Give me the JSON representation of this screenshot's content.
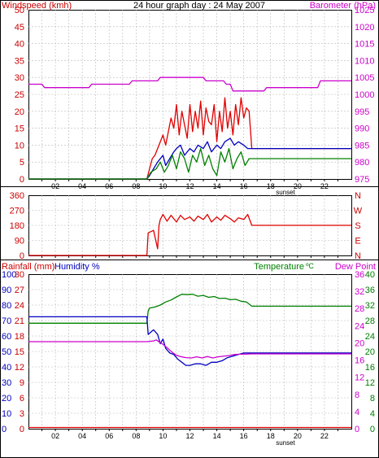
{
  "chart_data": [
    {
      "type": "line",
      "title": "24 hour graph day : 24 May 2007",
      "ylabel_left": "Windspeed (kmh)",
      "ylabel_right": "Barometer (hPa)",
      "x_ticks": [
        "02",
        "04",
        "06",
        "08",
        "10",
        "12",
        "14",
        "16",
        "18",
        "20",
        "22"
      ],
      "x_annotation": "sunset",
      "xlim": [
        0,
        24
      ],
      "y_left_ticks": [
        "0",
        "5",
        "10",
        "15",
        "20",
        "25",
        "30",
        "35",
        "40",
        "45",
        "50"
      ],
      "ylim_left": [
        0,
        50
      ],
      "y_right_ticks": [
        "975",
        "980",
        "985",
        "990",
        "995",
        "1000",
        "1005",
        "1010",
        "1015",
        "1020",
        "1025"
      ],
      "ylim_right": [
        975,
        1025
      ],
      "grid": true,
      "colors": {
        "gust": "#e00000",
        "wind": "#0000c0",
        "wind_min": "#008000",
        "barometer": "#cc00cc",
        "left_axis": "#cc0000",
        "right_axis": "#cc00cc"
      },
      "series": [
        {
          "axis": "left",
          "color": "#e00000",
          "x": [
            0,
            8.8,
            9.0,
            9.2,
            9.4,
            9.6,
            9.8,
            10.0,
            10.2,
            10.4,
            10.6,
            10.8,
            11.0,
            11.2,
            11.4,
            11.6,
            11.8,
            12.0,
            12.2,
            12.4,
            12.6,
            12.8,
            13.0,
            13.2,
            13.4,
            13.6,
            13.8,
            14.0,
            14.2,
            14.4,
            14.6,
            14.8,
            15.0,
            15.2,
            15.4,
            15.6,
            15.8,
            16.0,
            16.2,
            16.4,
            16.6,
            24
          ],
          "y": [
            0,
            0,
            3,
            6,
            7,
            9,
            11,
            13,
            10,
            14,
            18,
            15,
            22,
            13,
            20,
            16,
            12,
            22,
            14,
            20,
            15,
            23,
            13,
            21,
            17,
            16,
            22,
            11,
            20,
            14,
            24,
            15,
            20,
            13,
            22,
            16,
            24,
            18,
            21,
            20,
            9,
            9
          ]
        },
        {
          "axis": "left",
          "color": "#0000c0",
          "x": [
            0,
            8.8,
            9.0,
            9.3,
            9.6,
            10.0,
            10.2,
            10.5,
            10.8,
            11.0,
            11.3,
            11.6,
            12.0,
            12.3,
            12.6,
            13.0,
            13.3,
            13.6,
            14.0,
            14.3,
            14.6,
            15.0,
            15.3,
            15.6,
            16.0,
            16.3,
            16.6,
            24
          ],
          "y": [
            0,
            0,
            1,
            3,
            5,
            7,
            4,
            6,
            8,
            9,
            10,
            7,
            9,
            8,
            10,
            9,
            11,
            8,
            10,
            9,
            11,
            12,
            10,
            11,
            10,
            9,
            9,
            9
          ]
        },
        {
          "axis": "left",
          "color": "#008000",
          "x": [
            0,
            8.8,
            9.1,
            9.5,
            9.8,
            10.1,
            10.4,
            10.7,
            11.0,
            11.3,
            11.6,
            11.9,
            12.2,
            12.5,
            12.8,
            13.1,
            13.4,
            13.7,
            14.0,
            14.3,
            14.6,
            14.9,
            15.2,
            15.5,
            15.8,
            16.1,
            16.4,
            16.6,
            24
          ],
          "y": [
            0,
            0,
            2,
            3,
            5,
            2,
            4,
            7,
            3,
            8,
            6,
            2,
            7,
            5,
            9,
            4,
            7,
            3,
            1,
            8,
            5,
            9,
            3,
            6,
            8,
            4,
            6,
            6,
            6
          ]
        },
        {
          "axis": "right",
          "color": "#cc00cc",
          "x": [
            0,
            1,
            1.2,
            4.5,
            4.7,
            7.5,
            7.7,
            9.6,
            9.8,
            13.0,
            13.2,
            14.5,
            14.7,
            15.0,
            15.2,
            17.5,
            17.7,
            21.5,
            21.7,
            24
          ],
          "y": [
            1003,
            1003,
            1002,
            1002,
            1003,
            1003,
            1004,
            1004,
            1005,
            1005,
            1004,
            1004,
            1003,
            1003,
            1001,
            1001,
            1002,
            1002,
            1004,
            1004
          ]
        }
      ]
    },
    {
      "type": "line",
      "ylabel_right": [
        "N",
        "W",
        "S",
        "E",
        "N"
      ],
      "y_ticks": [
        "0",
        "90",
        "180",
        "270",
        "360"
      ],
      "ylim": [
        0,
        360
      ],
      "xlim": [
        0,
        24
      ],
      "grid": true,
      "series": [
        {
          "color": "#e00000",
          "x": [
            0,
            8.8,
            8.9,
            9.3,
            9.6,
            9.7,
            9.8,
            10.0,
            10.3,
            10.6,
            11.0,
            11.3,
            11.6,
            12.0,
            12.3,
            12.6,
            13.0,
            13.3,
            13.6,
            14.0,
            14.3,
            14.6,
            15.0,
            15.3,
            15.6,
            16.0,
            16.3,
            16.6,
            24
          ],
          "y": [
            0,
            0,
            135,
            150,
            40,
            180,
            215,
            245,
            205,
            240,
            200,
            240,
            215,
            230,
            205,
            235,
            215,
            245,
            200,
            230,
            210,
            240,
            220,
            200,
            225,
            215,
            245,
            180,
            180
          ]
        }
      ]
    },
    {
      "type": "line",
      "ylabel_left": [
        "Rainfall (mm)",
        "Humidity %"
      ],
      "ylabel_right": [
        "Temperature",
        "Dew Point"
      ],
      "x_ticks": [
        "02",
        "04",
        "06",
        "08",
        "10",
        "12",
        "14",
        "16",
        "18",
        "20",
        "22"
      ],
      "x_annotation": "sunset",
      "xlim": [
        0,
        24
      ],
      "y_rain_ticks": [
        "0",
        "3",
        "6",
        "9",
        "12",
        "15",
        "18",
        "21",
        "24",
        "27",
        "30"
      ],
      "ylim_rain": [
        0,
        30
      ],
      "y_humidity_ticks": [
        "0",
        "10",
        "20",
        "30",
        "40",
        "50",
        "60",
        "70",
        "80",
        "90",
        "100"
      ],
      "ylim_humidity": [
        0,
        100
      ],
      "y_dewpoint_ticks": [
        "0",
        "4",
        "8",
        "12",
        "16",
        "20",
        "24",
        "28",
        "32",
        "36"
      ],
      "ylim_dewpoint": [
        0,
        36
      ],
      "y_temperature_ticks": [
        "0",
        "4",
        "8",
        "12",
        "16",
        "20",
        "24",
        "28",
        "32",
        "36",
        "40"
      ],
      "ylim_temperature": [
        0,
        40
      ],
      "grid": true,
      "colors": {
        "temperature": "#008000",
        "humidity": "#0000c0",
        "dew_point": "#cc00cc",
        "rainfall": "#e00000"
      },
      "series": [
        {
          "axis": "right",
          "color": "#008000",
          "x": [
            0,
            8.8,
            8.9,
            9.0,
            9.4,
            9.8,
            10.2,
            10.6,
            11.0,
            11.4,
            11.8,
            12.2,
            12.6,
            13.0,
            13.4,
            13.8,
            14.2,
            14.6,
            15.0,
            15.4,
            15.8,
            16.2,
            16.6,
            24
          ],
          "y": [
            27.3,
            27.3,
            30.5,
            31.2,
            31.5,
            32.0,
            32.8,
            33.3,
            34.1,
            34.8,
            34.7,
            34.8,
            34.3,
            34.5,
            34.0,
            34.2,
            33.7,
            33.8,
            33.4,
            33.5,
            33.0,
            32.8,
            31.7,
            31.7
          ]
        },
        {
          "axis": "left",
          "color": "#0000c0",
          "x": [
            0,
            8.8,
            8.9,
            9.3,
            9.6,
            9.8,
            10.0,
            10.2,
            10.5,
            10.8,
            11.1,
            11.4,
            11.7,
            12.0,
            12.4,
            12.8,
            13.2,
            13.6,
            14.0,
            14.4,
            14.8,
            15.2,
            15.6,
            16.0,
            16.6,
            24
          ],
          "y": [
            72.4,
            72.4,
            61,
            64,
            61,
            55,
            58,
            52,
            49,
            48,
            45,
            43,
            41,
            41,
            42,
            42,
            41,
            43,
            43,
            44,
            46,
            47,
            48,
            49,
            49,
            49
          ]
        },
        {
          "axis": "left",
          "color": "#cc00cc",
          "x": [
            0,
            8.8,
            9.0,
            9.3,
            9.5,
            9.7,
            9.9,
            10.1,
            10.4,
            10.7,
            11.0,
            11.3,
            11.7,
            12.1,
            12.5,
            12.9,
            13.3,
            13.7,
            14.1,
            14.5,
            14.9,
            15.3,
            15.7,
            16.1,
            16.6,
            24
          ],
          "y": [
            56.3,
            56.3,
            56.5,
            56.8,
            57.5,
            56.2,
            55.2,
            53.9,
            51.7,
            49.3,
            47.5,
            46.7,
            46,
            45.8,
            46.5,
            45.8,
            46.7,
            45.8,
            46.5,
            46.9,
            47.3,
            48,
            48.2,
            48.2,
            48.4,
            48.4
          ]
        },
        {
          "axis": "left",
          "color": "#e00000",
          "x": [
            0,
            24
          ],
          "y": [
            0.8,
            0.8
          ]
        }
      ]
    }
  ]
}
